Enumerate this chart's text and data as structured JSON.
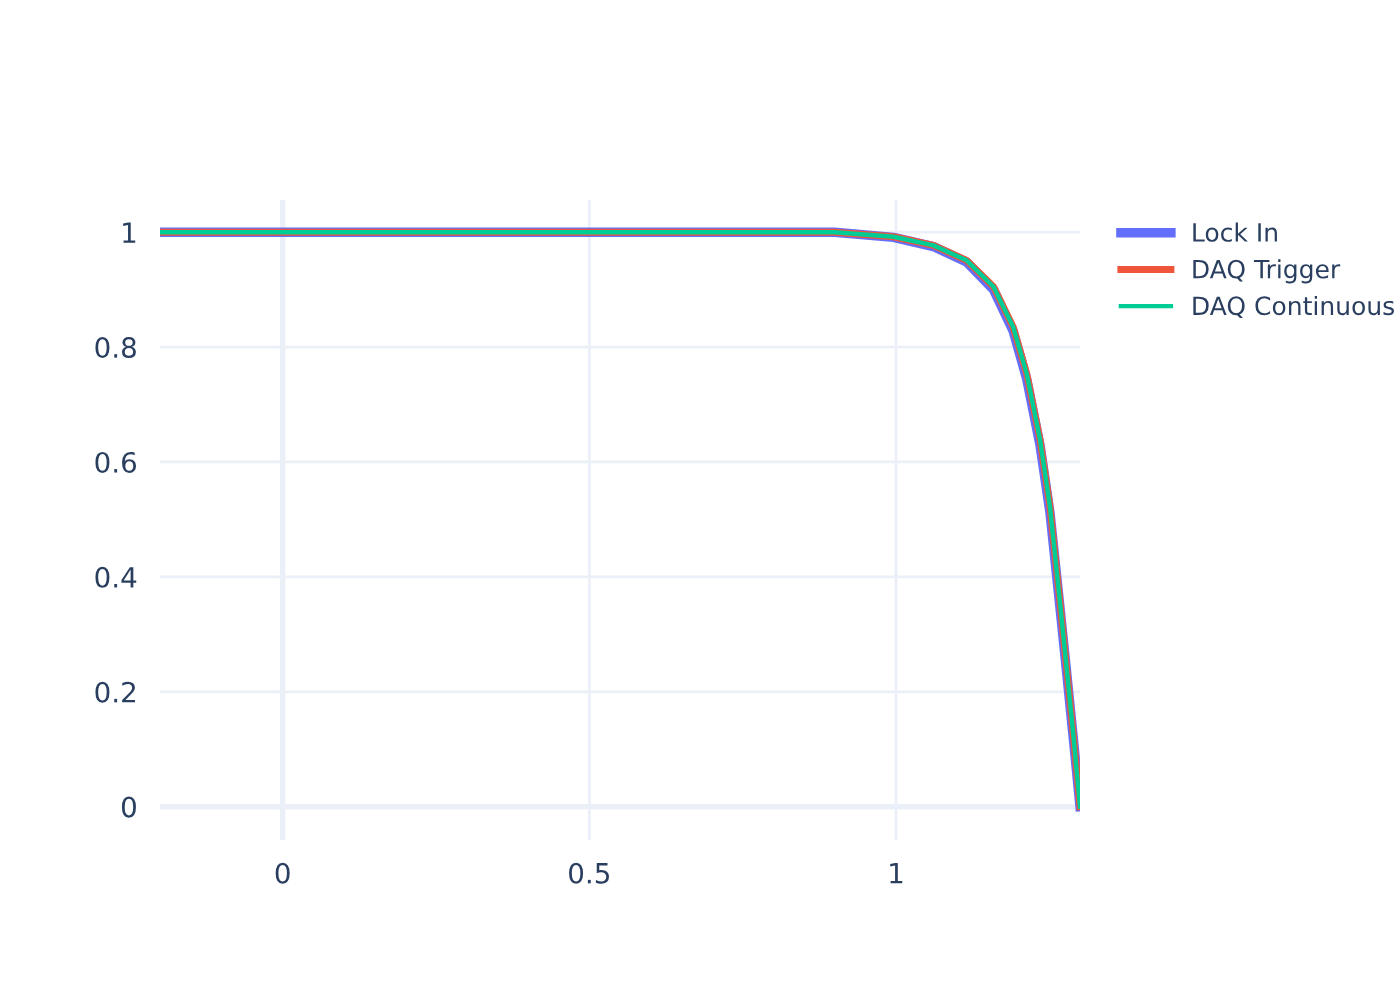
{
  "chart_data": {
    "type": "line",
    "x": [
      -0.2,
      0.5,
      0.9,
      0.996,
      1.061,
      1.115,
      1.159,
      1.191,
      1.213,
      1.235,
      1.251,
      1.267,
      1.278,
      1.289,
      1.3
    ],
    "series": [
      {
        "name": "Lock In",
        "color": "#636efa",
        "values": [
          1,
          1,
          1,
          0.991,
          0.975,
          0.948,
          0.9,
          0.828,
          0.745,
          0.628,
          0.512,
          0.35,
          0.236,
          0.12,
          0
        ]
      },
      {
        "name": "DAQ Trigger",
        "color": "#ef553b",
        "values": [
          1,
          1,
          1,
          0.992,
          0.977,
          0.951,
          0.905,
          0.835,
          0.754,
          0.638,
          0.522,
          0.359,
          0.243,
          0.126,
          0
        ]
      },
      {
        "name": "DAQ Continuous",
        "color": "#00cc96",
        "values": [
          1,
          1,
          1,
          0.992,
          0.977,
          0.951,
          0.905,
          0.835,
          0.754,
          0.638,
          0.522,
          0.359,
          0.243,
          0.126,
          0
        ]
      }
    ],
    "xlim": [
      -0.2,
      1.3
    ],
    "ylim": [
      -0.058,
      1.056
    ],
    "xticks": [
      0,
      0.5,
      1
    ],
    "yticks": [
      0,
      0.2,
      0.4,
      0.6,
      0.8,
      1
    ],
    "grid": true,
    "legend": "top right",
    "marker": "none",
    "line_style": "solid"
  }
}
